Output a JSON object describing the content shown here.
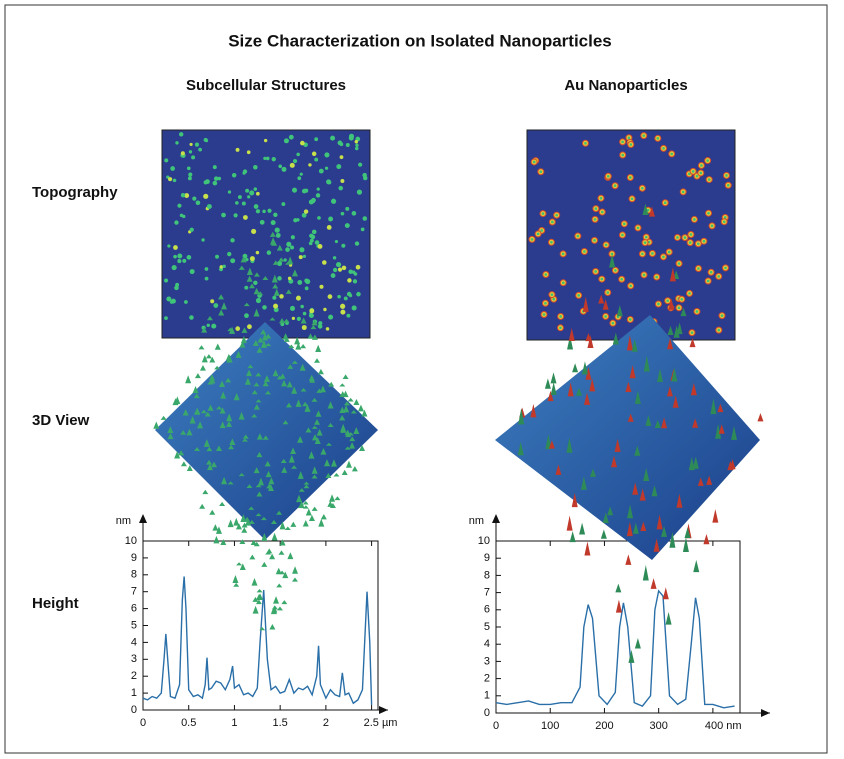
{
  "title": "Size Characterization on Isolated Nanoparticles",
  "columns": [
    "Subcellular Structures",
    "Au Nanoparticles"
  ],
  "rows": [
    "Topography",
    "3D View",
    "Height"
  ],
  "chart_data": [
    {
      "type": "line",
      "y_label": "nm",
      "color": "#2a6fa8",
      "x": [
        0,
        0.05,
        0.1,
        0.15,
        0.2,
        0.23,
        0.25,
        0.27,
        0.3,
        0.35,
        0.4,
        0.43,
        0.45,
        0.47,
        0.5,
        0.55,
        0.6,
        0.65,
        0.68,
        0.7,
        0.72,
        0.75,
        0.8,
        0.85,
        0.9,
        0.95,
        0.98,
        1.0,
        1.05,
        1.1,
        1.15,
        1.2,
        1.25,
        1.28,
        1.32,
        1.36,
        1.4,
        1.45,
        1.5,
        1.55,
        1.6,
        1.65,
        1.7,
        1.75,
        1.8,
        1.85,
        1.9,
        1.92,
        1.94,
        2.0,
        2.05,
        2.1,
        2.15,
        2.18,
        2.21,
        2.25,
        2.3,
        2.35,
        2.4,
        2.45,
        2.48,
        2.5
      ],
      "values": [
        0.7,
        0.6,
        0.8,
        0.7,
        1.0,
        3.0,
        4.5,
        3.0,
        0.8,
        0.7,
        1.5,
        6.5,
        7.9,
        6.0,
        1.2,
        0.8,
        0.9,
        0.7,
        1.5,
        3.1,
        1.2,
        1.3,
        1.7,
        1.6,
        1.2,
        1.8,
        2.6,
        1.3,
        1.5,
        0.9,
        1.0,
        0.8,
        1.3,
        4.0,
        7.1,
        3.0,
        1.2,
        1.4,
        1.0,
        1.1,
        1.8,
        1.0,
        1.3,
        1.2,
        1.4,
        0.9,
        2.0,
        3.8,
        1.5,
        0.7,
        1.2,
        0.9,
        0.8,
        2.2,
        0.9,
        1.0,
        0.4,
        0.6,
        1.2,
        7.0,
        4.0,
        0.3
      ],
      "xlim": [
        0,
        2.57
      ],
      "ylim": [
        0,
        10
      ],
      "xticks": [
        0,
        0.5,
        1,
        1.5,
        2,
        {
          "value": 2.5,
          "label": "2.5 µm"
        }
      ],
      "yticks": [
        0,
        1,
        2,
        3,
        4,
        5,
        6,
        7,
        8,
        9,
        10
      ]
    },
    {
      "type": "line",
      "y_label": "nm",
      "color": "#2a6fa8",
      "x": [
        0,
        20,
        40,
        60,
        80,
        100,
        120,
        140,
        155,
        162,
        170,
        178,
        190,
        205,
        220,
        228,
        235,
        243,
        255,
        270,
        285,
        293,
        300,
        308,
        320,
        335,
        350,
        360,
        368,
        375,
        385,
        400,
        420,
        440
      ],
      "values": [
        0.6,
        0.5,
        0.6,
        0.7,
        0.5,
        0.5,
        0.6,
        0.6,
        1.5,
        5.0,
        6.3,
        5.5,
        1.0,
        0.5,
        1.2,
        5.0,
        6.4,
        5.0,
        0.6,
        0.4,
        1.0,
        6.0,
        7.1,
        6.8,
        1.0,
        0.5,
        0.8,
        4.0,
        6.7,
        5.5,
        0.5,
        0.5,
        0.3,
        0.4
      ],
      "xlim": [
        0,
        450
      ],
      "ylim": [
        0,
        10
      ],
      "xticks": [
        0,
        100,
        200,
        300,
        {
          "value": 400,
          "label": "400 nm"
        }
      ],
      "yticks": [
        0,
        1,
        2,
        3,
        4,
        5,
        6,
        7,
        8,
        9,
        10
      ]
    }
  ]
}
